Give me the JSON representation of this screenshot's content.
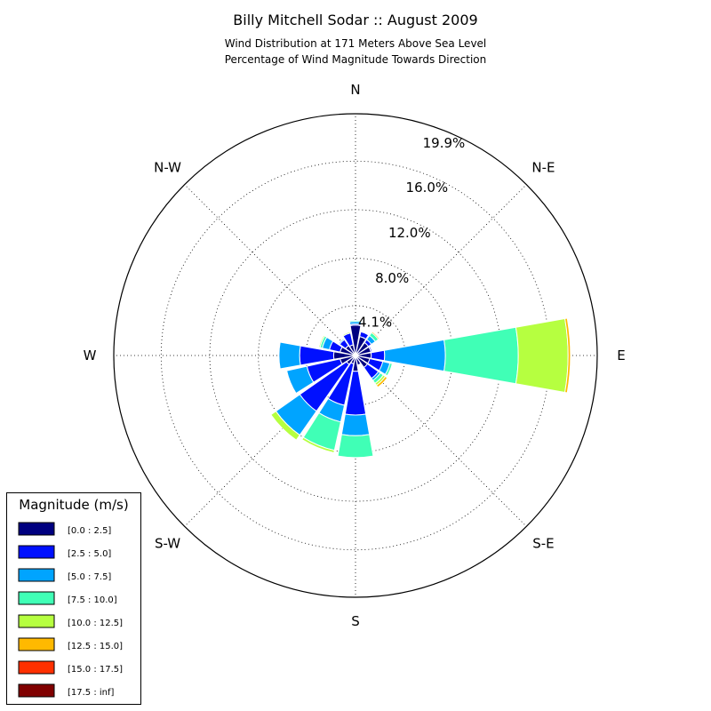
{
  "chart_data": {
    "type": "windrose",
    "title": "Billy Mitchell Sodar :: August 2009",
    "subtitle_lines": [
      "Wind Distribution at 171 Meters Above Sea Level",
      "Percentage of Wind Magnitude Towards Direction"
    ],
    "direction_labels": [
      "N",
      "N-E",
      "E",
      "S-E",
      "S",
      "S-W",
      "W",
      "N-W"
    ],
    "ring_labels": [
      "4.1%",
      "8.0%",
      "12.0%",
      "16.0%",
      "19.9%"
    ],
    "ring_values": [
      4.1,
      8.0,
      12.0,
      16.0,
      19.9
    ],
    "rmax": 19.9,
    "legend": {
      "title": "Magnitude (m/s)",
      "entries": [
        "[0.0 : 2.5]",
        "[2.5 : 5.0]",
        "[5.0 : 7.5]",
        "[7.5 : 10.0]",
        "[10.0 : 12.5]",
        "[12.5 : 15.0]",
        "[15.0 : 17.5]",
        "[17.5 : inf]"
      ],
      "colors": [
        "#000080",
        "#0010ff",
        "#00a4ff",
        "#40ffb6",
        "#b6ff40",
        "#ffb900",
        "#ff3000",
        "#800000"
      ]
    },
    "sectors": [
      {
        "dir_deg": 0,
        "values": [
          2.5,
          0.1,
          0.2,
          0.1,
          0,
          0,
          0,
          0
        ]
      },
      {
        "dir_deg": 22.5,
        "values": [
          1.6,
          0.4,
          0,
          0,
          0,
          0,
          0,
          0
        ]
      },
      {
        "dir_deg": 45,
        "values": [
          1.3,
          0.3,
          0.4,
          0.3,
          0,
          0.1,
          0,
          0
        ]
      },
      {
        "dir_deg": 67.5,
        "values": [
          1.3,
          0.1,
          0,
          0,
          0,
          0,
          0,
          0
        ]
      },
      {
        "dir_deg": 90,
        "values": [
          1.3,
          1.1,
          5.0,
          6.0,
          4.1,
          0.2,
          0,
          0
        ]
      },
      {
        "dir_deg": 112.5,
        "values": [
          1.2,
          1.1,
          0.6,
          0.2,
          0,
          0,
          0,
          0
        ]
      },
      {
        "dir_deg": 135,
        "values": [
          1.2,
          1.1,
          0.2,
          0.3,
          0.2,
          0.2,
          0,
          0
        ]
      },
      {
        "dir_deg": 157.5,
        "values": [
          0.8,
          0,
          0,
          0,
          0,
          0,
          0,
          0
        ]
      },
      {
        "dir_deg": 180,
        "values": [
          1.3,
          3.6,
          1.7,
          1.8,
          0,
          0,
          0,
          0
        ]
      },
      {
        "dir_deg": 202.5,
        "values": [
          0.7,
          3.5,
          1.4,
          2.4,
          0.2,
          0,
          0,
          0
        ]
      },
      {
        "dir_deg": 225,
        "values": [
          0.9,
          4.7,
          2.4,
          0,
          0.5,
          0,
          0,
          0
        ]
      },
      {
        "dir_deg": 247.5,
        "values": [
          1.3,
          2.8,
          1.7,
          0,
          0,
          0,
          0,
          0
        ]
      },
      {
        "dir_deg": 270,
        "values": [
          1.8,
          2.8,
          1.7,
          0,
          0,
          0,
          0,
          0
        ]
      },
      {
        "dir_deg": 292.5,
        "values": [
          1.3,
          0.9,
          0.6,
          0.2,
          0.1,
          0,
          0,
          0
        ]
      },
      {
        "dir_deg": 315,
        "values": [
          1.0,
          0.6,
          0.1,
          0,
          0,
          0,
          0,
          0
        ]
      },
      {
        "dir_deg": 337.5,
        "values": [
          0.9,
          1.0,
          0,
          0,
          0.1,
          0,
          0,
          0
        ]
      }
    ],
    "grid": true
  }
}
